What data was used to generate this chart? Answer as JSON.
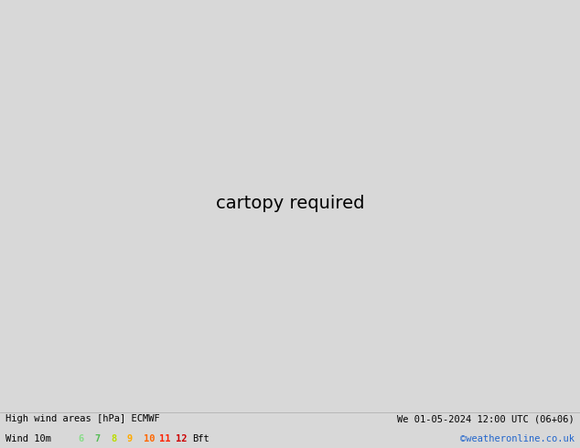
{
  "title_left": "High wind areas [hPa] ECMWF",
  "title_right": "We 01-05-2024 12:00 UTC (06+06)",
  "legend_label": "Wind 10m",
  "legend_values": [
    "6",
    "7",
    "8",
    "9",
    "10",
    "11",
    "12"
  ],
  "legend_colors": [
    "#90ee90",
    "#66cc66",
    "#ccff33",
    "#ffaa00",
    "#ff6600",
    "#ff2200",
    "#aa0000"
  ],
  "legend_unit": "Bft",
  "copyright": "©weatheronline.co.uk",
  "land_color": "#d0d0d0",
  "sea_color": "#eaeaea",
  "fig_width": 6.34,
  "fig_height": 4.9,
  "dpi": 100,
  "extent": [
    -25,
    20,
    42,
    65
  ]
}
